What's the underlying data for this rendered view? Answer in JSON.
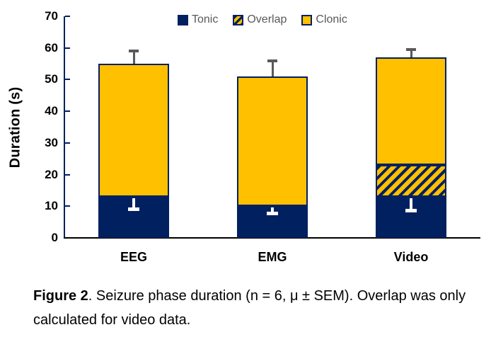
{
  "chart_data": {
    "type": "bar",
    "subtype": "stacked-vertical",
    "title": "",
    "xlabel": "",
    "ylabel": "Duration (s)",
    "ylim": [
      0,
      70
    ],
    "yticks": [
      0,
      10,
      20,
      30,
      40,
      50,
      60,
      70
    ],
    "grid": false,
    "legend_position": "top",
    "categories": [
      "EEG",
      "EMG",
      "Video"
    ],
    "series": [
      {
        "name": "Tonic",
        "values": [
          13,
          10,
          13
        ],
        "color": "#002060",
        "pattern": "solid"
      },
      {
        "name": "Overlap",
        "values": [
          0,
          0,
          10
        ],
        "color": "#FFC000",
        "pattern": "diagonal-hatch",
        "hatch_color": "#002060"
      },
      {
        "name": "Clonic",
        "values": [
          42,
          41,
          34
        ],
        "color": "#FFC000",
        "pattern": "solid"
      }
    ],
    "stack_totals": [
      55,
      51,
      57
    ],
    "total_sem_upper": [
      4,
      5,
      2.5
    ],
    "tonic_sem_lower": [
      4,
      2.5,
      4.5
    ],
    "error_bars": "upper SEM whisker in gray above each stack; lower SEM whisker in white inside tonic segment"
  },
  "caption": {
    "figure_label": "Figure 2",
    "text": ". Seizure phase duration (n = 6, μ ± SEM). Overlap was only calculated for video data."
  },
  "colors": {
    "navy": "#002060",
    "gold": "#FFC000",
    "legend_text": "#595959",
    "error_bar_gray": "#595959",
    "error_bar_white": "#FFFFFF",
    "x_axis": "#000000",
    "text": "#000000",
    "background": "#FFFFFF"
  }
}
